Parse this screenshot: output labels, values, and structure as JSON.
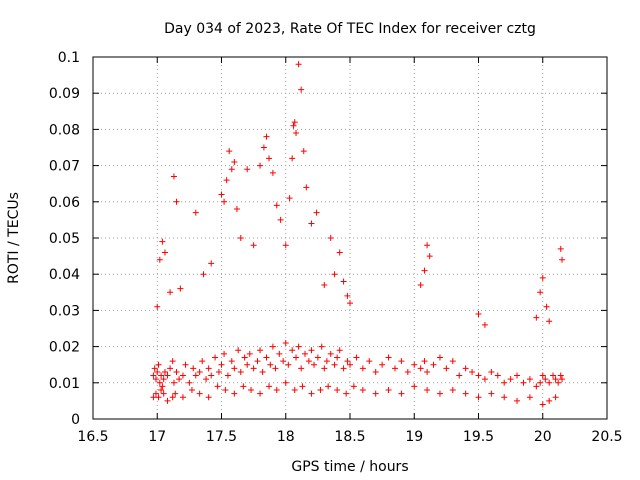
{
  "chart_data": {
    "type": "scatter",
    "title": "Day 034 of 2023, Rate Of TEC Index for receiver cztg",
    "xlabel": "GPS time / hours",
    "ylabel": "ROTI / TECUs",
    "xlim": [
      16.5,
      20.5
    ],
    "ylim": [
      0,
      0.1
    ],
    "xticks": [
      16.5,
      17,
      17.5,
      18,
      18.5,
      19,
      19.5,
      20,
      20.5
    ],
    "xtick_labels": [
      "16.5",
      "17",
      "17.5",
      "18",
      "18.5",
      "19",
      "19.5",
      "20",
      "20.5"
    ],
    "yticks": [
      0,
      0.01,
      0.02,
      0.03,
      0.04,
      0.05,
      0.06,
      0.07,
      0.08,
      0.09,
      0.1
    ],
    "ytick_labels": [
      "0",
      "0.01",
      "0.02",
      "0.03",
      "0.04",
      "0.05",
      "0.06",
      "0.07",
      "0.08",
      "0.09",
      "0.1"
    ],
    "grid": true,
    "marker": "+",
    "marker_color": "#ff0000",
    "series": [
      {
        "name": "ROTI",
        "x": [
          16.97,
          16.98,
          16.99,
          17.0,
          17.01,
          17.02,
          17.03,
          17.04,
          17.05,
          17.06,
          17.08,
          17.1,
          17.12,
          17.13,
          17.15,
          17.17,
          17.2,
          17.22,
          17.25,
          17.28,
          17.3,
          17.33,
          17.35,
          17.38,
          17.4,
          17.42,
          17.45,
          17.48,
          17.5,
          17.52,
          17.55,
          17.58,
          17.6,
          17.63,
          17.65,
          17.68,
          17.7,
          17.72,
          17.75,
          17.78,
          17.8,
          17.82,
          17.85,
          17.88,
          17.9,
          17.92,
          17.95,
          17.98,
          18.0,
          18.02,
          18.05,
          18.08,
          18.1,
          18.12,
          18.15,
          18.18,
          18.2,
          18.22,
          18.25,
          18.28,
          18.3,
          18.32,
          18.35,
          18.38,
          18.4,
          18.42,
          18.45,
          18.48,
          18.5,
          18.55,
          18.6,
          18.65,
          18.7,
          18.75,
          18.8,
          18.85,
          18.9,
          18.95,
          19.0,
          19.05,
          19.08,
          19.1,
          19.15,
          19.2,
          19.25,
          19.3,
          19.35,
          19.4,
          19.45,
          19.5,
          19.55,
          19.6,
          19.65,
          19.7,
          19.75,
          19.8,
          19.85,
          19.9,
          19.95,
          19.98,
          20.0,
          20.02,
          20.05,
          20.08,
          20.1,
          20.12,
          20.14,
          20.15,
          16.97,
          16.99,
          17.01,
          17.03,
          17.05,
          17.08,
          17.12,
          17.14,
          17.2,
          17.27,
          17.33,
          17.4,
          17.47,
          17.53,
          17.6,
          17.67,
          17.73,
          17.8,
          17.87,
          17.93,
          18.0,
          18.07,
          18.13,
          18.2,
          18.27,
          18.33,
          18.4,
          18.47,
          18.53,
          18.6,
          18.7,
          18.8,
          18.9,
          19.0,
          19.1,
          19.2,
          19.3,
          19.4,
          19.5,
          19.6,
          19.7,
          19.8,
          19.9,
          20.0,
          20.05,
          20.1,
          17.0,
          17.02,
          17.04,
          17.06,
          17.1,
          17.13,
          17.15,
          17.18,
          17.3,
          17.36,
          17.42,
          17.5,
          17.52,
          17.54,
          17.56,
          17.58,
          17.6,
          17.62,
          17.65,
          17.7,
          17.75,
          17.8,
          17.83,
          17.85,
          17.87,
          17.9,
          17.93,
          17.96,
          18.0,
          18.03,
          18.05,
          18.06,
          18.07,
          18.08,
          18.1,
          18.12,
          18.14,
          18.16,
          18.2,
          18.24,
          18.3,
          18.35,
          18.38,
          18.42,
          18.45,
          18.48,
          18.5,
          19.05,
          19.08,
          19.1,
          19.12,
          19.5,
          19.55,
          19.95,
          19.98,
          20.0,
          20.03,
          20.05,
          20.14,
          20.15
        ],
        "y": [
          0.012,
          0.014,
          0.011,
          0.013,
          0.015,
          0.01,
          0.012,
          0.009,
          0.011,
          0.013,
          0.012,
          0.014,
          0.016,
          0.01,
          0.013,
          0.011,
          0.012,
          0.015,
          0.01,
          0.014,
          0.012,
          0.013,
          0.016,
          0.011,
          0.014,
          0.012,
          0.017,
          0.013,
          0.015,
          0.018,
          0.012,
          0.016,
          0.014,
          0.019,
          0.013,
          0.017,
          0.015,
          0.018,
          0.014,
          0.016,
          0.019,
          0.013,
          0.017,
          0.015,
          0.02,
          0.014,
          0.018,
          0.016,
          0.021,
          0.015,
          0.019,
          0.017,
          0.02,
          0.014,
          0.018,
          0.016,
          0.019,
          0.015,
          0.017,
          0.02,
          0.014,
          0.016,
          0.018,
          0.015,
          0.017,
          0.019,
          0.014,
          0.016,
          0.015,
          0.017,
          0.014,
          0.016,
          0.013,
          0.015,
          0.017,
          0.014,
          0.016,
          0.013,
          0.015,
          0.014,
          0.016,
          0.013,
          0.015,
          0.017,
          0.014,
          0.016,
          0.012,
          0.014,
          0.013,
          0.012,
          0.011,
          0.013,
          0.012,
          0.01,
          0.011,
          0.012,
          0.01,
          0.011,
          0.009,
          0.01,
          0.012,
          0.011,
          0.01,
          0.012,
          0.011,
          0.01,
          0.012,
          0.011,
          0.006,
          0.007,
          0.006,
          0.008,
          0.007,
          0.005,
          0.006,
          0.007,
          0.006,
          0.008,
          0.007,
          0.006,
          0.009,
          0.008,
          0.007,
          0.009,
          0.008,
          0.007,
          0.009,
          0.008,
          0.01,
          0.008,
          0.009,
          0.007,
          0.008,
          0.009,
          0.008,
          0.007,
          0.009,
          0.008,
          0.007,
          0.008,
          0.007,
          0.009,
          0.008,
          0.007,
          0.008,
          0.007,
          0.006,
          0.007,
          0.006,
          0.005,
          0.006,
          0.004,
          0.005,
          0.006,
          0.031,
          0.044,
          0.049,
          0.046,
          0.035,
          0.067,
          0.06,
          0.036,
          0.057,
          0.04,
          0.043,
          0.062,
          0.06,
          0.066,
          0.074,
          0.069,
          0.071,
          0.058,
          0.05,
          0.069,
          0.048,
          0.07,
          0.075,
          0.078,
          0.072,
          0.068,
          0.059,
          0.055,
          0.048,
          0.061,
          0.072,
          0.081,
          0.082,
          0.079,
          0.098,
          0.091,
          0.074,
          0.064,
          0.054,
          0.057,
          0.037,
          0.05,
          0.04,
          0.046,
          0.038,
          0.034,
          0.032,
          0.037,
          0.041,
          0.048,
          0.045,
          0.029,
          0.026,
          0.028,
          0.035,
          0.039,
          0.031,
          0.027,
          0.047,
          0.044
        ]
      }
    ]
  }
}
